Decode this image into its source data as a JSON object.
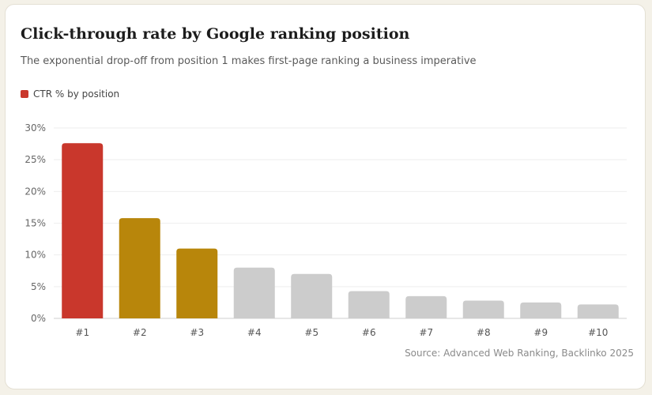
{
  "chart_data": {
    "type": "bar",
    "title": "Click-through rate by Google ranking position",
    "subtitle": "The exponential drop-off from position 1 makes first-page ranking a business imperative",
    "categories": [
      "#1",
      "#2",
      "#3",
      "#4",
      "#5",
      "#6",
      "#7",
      "#8",
      "#9",
      "#10"
    ],
    "series": [
      {
        "name": "CTR % by position",
        "values": [
          27.6,
          15.8,
          11.0,
          8.0,
          7.0,
          4.3,
          3.5,
          2.8,
          2.5,
          2.2
        ]
      }
    ],
    "bar_colors": [
      "#c9372c",
      "#b8860b",
      "#b8860b",
      "#cccccc",
      "#cccccc",
      "#cccccc",
      "#cccccc",
      "#cccccc",
      "#cccccc",
      "#cccccc"
    ],
    "legend_color": "#c9372c",
    "ylim": [
      0,
      30
    ],
    "yticks": [
      0,
      5,
      10,
      15,
      20,
      25,
      30
    ],
    "ytick_labels": [
      "0%",
      "5%",
      "10%",
      "15%",
      "20%",
      "25%",
      "30%"
    ],
    "grid": true,
    "legend_position": "top-left",
    "source": "Source: Advanced Web Ranking, Backlinko 2025"
  }
}
